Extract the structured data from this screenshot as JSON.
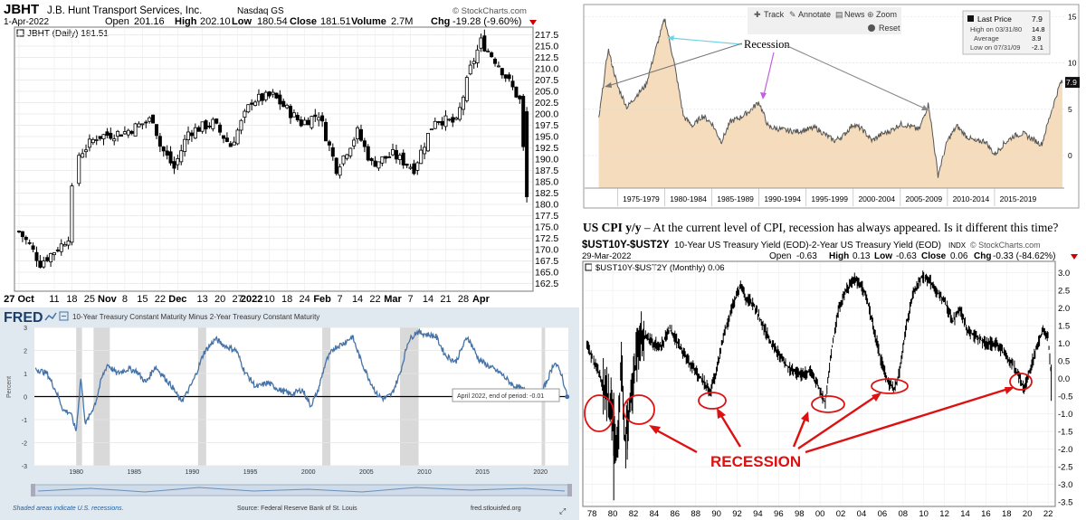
{
  "jbht": {
    "ticker": "JBHT",
    "company": "J.B. Hunt Transport Services, Inc.",
    "exchange": "Nasdaq GS",
    "date": "1-Apr-2022",
    "open_label": "Open",
    "open": "201.16",
    "high_label": "High",
    "high": "202.10",
    "low_label": "Low",
    "low": "180.54",
    "close_label": "Close",
    "close": "181.51",
    "volume_label": "Volume",
    "volume": "2.7M",
    "chg_label": "Chg",
    "chg": "-19.28 (-9.60%)",
    "watermark": "© StockCharts.com",
    "legend": "JBHT (Daily) 181.51",
    "colors": {
      "candle": "#000000",
      "grid": "#e0e0e0",
      "down_arrow": "#cc0000"
    }
  },
  "cpi": {
    "toolbar": {
      "track": "Track",
      "annotate": "Annotate",
      "news": "News",
      "zoom": "Zoom",
      "reset": "Reset"
    },
    "legend": {
      "last_label": "Last Price",
      "last": "7.9",
      "high_label": "High on 03/31/80",
      "high": "14.8",
      "avg_label": "Average",
      "avg": "3.9",
      "low_label": "Low on 07/31/09",
      "low": "-2.1"
    },
    "annotation": "Recession",
    "colors": {
      "fill": "#f4dcbc",
      "line": "#555555",
      "arrow_cyan": "#6fd3e6",
      "arrow_purple": "#c060e0",
      "arrow_gray": "#888888"
    }
  },
  "caption": {
    "bold": "US CPI y/y",
    "rest": " – At the current level of CPI, recession has always appeared.  Is it different this time?"
  },
  "fred": {
    "logo": "FRED",
    "title": "10-Year Treasury Constant Maturity Minus 2-Year Treasury Constant Maturity",
    "ylabel": "Percent",
    "tooltip": "April 2022, end of period: -0.01",
    "footer_left": "Shaded areas indicate U.S. recessions.",
    "footer_center": "Source: Federal Reserve Bank of St. Louis",
    "footer_right": "fred.stlouisfed.org",
    "colors": {
      "line": "#4572a7",
      "shade": "#d9d9d9",
      "bg": "#e1e9f0"
    }
  },
  "t10y": {
    "symbol": "$UST10Y-$UST2Y",
    "description": "10-Year US Treasury Yield (EOD)-2-Year US Treasury Yield (EOD)",
    "index": "INDX",
    "date": "29-Mar-2022",
    "open_label": "Open",
    "open": "-0.63",
    "high_label": "High",
    "high": "0.13",
    "low_label": "Low",
    "low": "-0.63",
    "close_label": "Close",
    "close": "0.06",
    "chg_label": "Chg",
    "chg": "-0.33 (-84.62%)",
    "watermark": "© StockCharts.com",
    "legend": "$UST10Y-$UST2Y (Monthly) 0.06",
    "annotation": "RECESSION",
    "colors": {
      "line": "#000000",
      "annotation": "#dd1111"
    }
  },
  "chart_data": [
    {
      "type": "candlestick",
      "title": "JBHT (Daily) 181.51",
      "x_tick_labels": [
        "27 Oct",
        "11",
        "18",
        "25",
        "Nov",
        "8",
        "15",
        "22",
        "Dec",
        "13",
        "20",
        "27",
        "2022",
        "10",
        "18",
        "24",
        "Feb",
        "7",
        "14",
        "22",
        "Mar",
        "7",
        "14",
        "21",
        "28",
        "Apr"
      ],
      "y_tick_labels": [
        "217.5",
        "215.0",
        "212.5",
        "210.0",
        "207.5",
        "205.0",
        "202.5",
        "200.0",
        "197.5",
        "195.0",
        "192.5",
        "190.0",
        "187.5",
        "185.0",
        "182.5",
        "180.0",
        "177.5",
        "175.0",
        "172.5",
        "170.0",
        "167.5",
        "165.0",
        "162.5"
      ],
      "ylim": [
        161,
        219
      ],
      "close_keyframes": [
        [
          0,
          174
        ],
        [
          3,
          171
        ],
        [
          6,
          167
        ],
        [
          9,
          169
        ],
        [
          12,
          171
        ],
        [
          14,
          173
        ],
        [
          15,
          183
        ],
        [
          17,
          191
        ],
        [
          22,
          195
        ],
        [
          30,
          196
        ],
        [
          38,
          199
        ],
        [
          40,
          193
        ],
        [
          44,
          188
        ],
        [
          48,
          196
        ],
        [
          55,
          198
        ],
        [
          60,
          193
        ],
        [
          66,
          203
        ],
        [
          72,
          204
        ],
        [
          80,
          198
        ],
        [
          85,
          200
        ],
        [
          90,
          188
        ],
        [
          96,
          196
        ],
        [
          100,
          189
        ],
        [
          106,
          191
        ],
        [
          112,
          188
        ],
        [
          118,
          199
        ],
        [
          124,
          198
        ],
        [
          128,
          210
        ],
        [
          131,
          216
        ],
        [
          136,
          211
        ],
        [
          142,
          203
        ],
        [
          144,
          181.5
        ]
      ]
    },
    {
      "type": "area",
      "title": "",
      "x_tick_labels": [
        "1975-1979",
        "1980-1984",
        "1985-1989",
        "1990-1994",
        "1995-1999",
        "2000-2004",
        "2005-2009",
        "2010-2014",
        "2015-2019"
      ],
      "y_tick_labels": [
        "15",
        "10",
        "5",
        "0"
      ],
      "ylim": [
        -3.5,
        16
      ],
      "x": [
        1973,
        1974,
        1975,
        1976,
        1977,
        1978,
        1979,
        1980,
        1981,
        1982,
        1983,
        1984,
        1985,
        1986,
        1987,
        1988,
        1989,
        1990,
        1991,
        1992,
        1993,
        1994,
        1995,
        1996,
        1997,
        1998,
        1999,
        2000,
        2001,
        2002,
        2003,
        2004,
        2005,
        2006,
        2007,
        2008,
        2009,
        2010,
        2011,
        2012,
        2013,
        2014,
        2015,
        2016,
        2017,
        2018,
        2019,
        2020,
        2021,
        2022
      ],
      "values": [
        4,
        11.5,
        7.5,
        5.2,
        6.5,
        7.6,
        11.3,
        14.8,
        10,
        4.2,
        3.2,
        4.3,
        3.5,
        1.5,
        3.7,
        4.1,
        4.8,
        5.8,
        3.1,
        2.9,
        2.7,
        2.6,
        2.8,
        3.0,
        2.3,
        1.6,
        2.2,
        3.4,
        2.8,
        1.6,
        2.3,
        2.7,
        3.4,
        3.2,
        2.8,
        5.6,
        -2.1,
        1.6,
        3.2,
        2.1,
        1.5,
        1.6,
        0.1,
        1.3,
        2.1,
        2.4,
        1.8,
        1.2,
        4.7,
        7.9
      ],
      "legend": [
        [
          "Last Price",
          "7.9"
        ],
        [
          "High on 03/31/80",
          "14.8"
        ],
        [
          "Average",
          "3.9"
        ],
        [
          "Low on 07/31/09",
          "-2.1"
        ]
      ]
    },
    {
      "type": "line",
      "title": "10-Year Treasury Constant Maturity Minus 2-Year Treasury Constant Maturity",
      "ylabel": "Percent",
      "x_tick_labels": [
        "1980",
        "1985",
        "1990",
        "1995",
        "2000",
        "2005",
        "2010",
        "2015",
        "2020"
      ],
      "y_tick_labels": [
        "3",
        "2",
        "1",
        "0",
        "-1",
        "-2",
        "-3"
      ],
      "ylim": [
        -3,
        3
      ],
      "recessions": [
        [
          1980.0,
          1980.5
        ],
        [
          1981.5,
          1982.9
        ],
        [
          1990.5,
          1991.2
        ],
        [
          2001.2,
          2001.9
        ],
        [
          2007.9,
          2009.5
        ],
        [
          2020.1,
          2020.4
        ]
      ],
      "x": [
        1976.5,
        1977.5,
        1978.3,
        1978.9,
        1979.5,
        1980.0,
        1980.4,
        1980.8,
        1981.2,
        1981.7,
        1982.2,
        1982.7,
        1983.5,
        1984.5,
        1985.2,
        1986.0,
        1986.8,
        1987.5,
        1988.3,
        1989.0,
        1989.5,
        1990.2,
        1991.0,
        1992.0,
        1992.8,
        1993.8,
        1994.5,
        1995.5,
        1996.5,
        1997.5,
        1998.5,
        1999.5,
        2000.2,
        2000.8,
        2001.5,
        2002.2,
        2003.0,
        2003.8,
        2004.5,
        2005.2,
        2005.9,
        2006.5,
        2007.2,
        2007.9,
        2008.6,
        2009.3,
        2010.2,
        2011.0,
        2011.8,
        2012.7,
        2013.7,
        2014.7,
        2015.6,
        2016.6,
        2017.6,
        2018.5,
        2019.3,
        2019.9,
        2020.5,
        2021.2,
        2021.8,
        2022.3
      ],
      "values": [
        1.2,
        1.0,
        0.2,
        -0.6,
        -0.7,
        -1.5,
        0.8,
        -1.2,
        -0.8,
        -0.2,
        0.8,
        1.4,
        1.0,
        1.2,
        1.1,
        0.6,
        1.3,
        0.9,
        0.4,
        -0.2,
        0.1,
        0.8,
        1.9,
        2.5,
        2.2,
        2.0,
        1.1,
        0.4,
        0.6,
        0.3,
        0.1,
        0.3,
        -0.4,
        0.2,
        1.5,
        2.1,
        2.3,
        2.6,
        1.6,
        0.8,
        0.1,
        -0.1,
        0.1,
        1.0,
        2.4,
        2.8,
        2.7,
        2.6,
        1.8,
        1.5,
        2.6,
        1.6,
        1.3,
        1.0,
        0.5,
        0.3,
        0.1,
        0.0,
        0.6,
        1.5,
        1.0,
        -0.01
      ],
      "tooltip": "April 2022, end of period: -0.01"
    },
    {
      "type": "line",
      "title": "$UST10Y-$UST2Y (Monthly) 0.06",
      "x_tick_labels": [
        "78",
        "80",
        "82",
        "84",
        "86",
        "88",
        "90",
        "92",
        "94",
        "96",
        "98",
        "00",
        "02",
        "04",
        "06",
        "08",
        "10",
        "12",
        "14",
        "16",
        "18",
        "20",
        "22"
      ],
      "y_tick_labels": [
        "3.0",
        "2.5",
        "2.0",
        "1.5",
        "1.0",
        "0.5",
        "0.0",
        "-0.5",
        "-1.0",
        "-1.5",
        "-2.0",
        "-2.5",
        "-3.0",
        "-3.5"
      ],
      "ylim": [
        -3.6,
        3.3
      ],
      "x": [
        1977.5,
        1978.0,
        1978.6,
        1979.2,
        1979.8,
        1980.2,
        1980.5,
        1980.8,
        1981.2,
        1981.6,
        1982.0,
        1982.4,
        1983.0,
        1984.0,
        1984.6,
        1985.5,
        1986.5,
        1987.3,
        1988.0,
        1988.8,
        1989.4,
        1990.0,
        1990.6,
        1991.5,
        1992.3,
        1992.8,
        1993.6,
        1994.5,
        1995.3,
        1996.2,
        1997.0,
        1998.0,
        1999.0,
        2000.0,
        2000.5,
        2001.0,
        2001.8,
        2002.5,
        2003.3,
        2003.8,
        2004.4,
        2005.2,
        2005.9,
        2006.5,
        2007.1,
        2007.7,
        2008.3,
        2009.0,
        2009.8,
        2010.5,
        2011.2,
        2012.0,
        2012.8,
        2013.5,
        2014.2,
        2015.0,
        2016.0,
        2017.0,
        2018.0,
        2018.8,
        2019.3,
        2019.7,
        2020.3,
        2021.0,
        2021.6,
        2022.0,
        2022.3
      ],
      "values": [
        1.0,
        0.6,
        0.2,
        -0.4,
        -0.8,
        -1.6,
        -2.0,
        0.4,
        -1.8,
        -0.9,
        0.0,
        0.8,
        1.2,
        1.0,
        0.9,
        1.4,
        0.9,
        0.5,
        0.2,
        -0.1,
        -0.4,
        0.2,
        1.1,
        2.0,
        2.6,
        2.3,
        2.1,
        1.5,
        1.0,
        0.6,
        0.3,
        0.1,
        0.2,
        -0.3,
        -0.7,
        0.6,
        2.0,
        2.5,
        2.8,
        2.7,
        2.4,
        1.4,
        0.5,
        -0.1,
        -0.3,
        0.2,
        1.5,
        2.4,
        2.9,
        2.8,
        2.5,
        2.2,
        1.6,
        2.0,
        1.4,
        1.2,
        1.0,
        1.0,
        0.6,
        0.3,
        0.0,
        -0.3,
        0.3,
        1.0,
        1.4,
        1.2,
        0.06
      ],
      "annotation": "RECESSION"
    }
  ]
}
